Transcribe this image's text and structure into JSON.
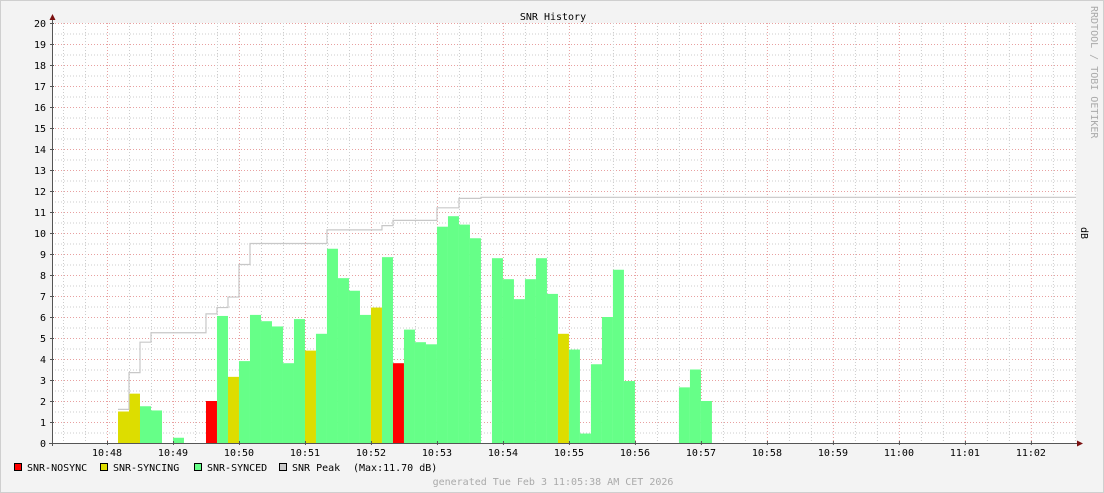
{
  "chart_data": {
    "type": "bar",
    "title": "SNR History",
    "ylabel": "dB",
    "watermark": "RRDTOOL / TOBI OETIKER",
    "footer": "generated Tue Feb  3 11:05:38 AM CET 2026",
    "ylim": [
      0,
      20
    ],
    "xlim": [
      "10:47:10",
      "11:02:41"
    ],
    "grid": true,
    "bar_interval_seconds": 10,
    "x_ticks": [
      "10:48",
      "10:49",
      "10:50",
      "10:51",
      "10:52",
      "10:53",
      "10:54",
      "10:55",
      "10:56",
      "10:57",
      "10:58",
      "10:59",
      "11:00",
      "11:01",
      "11:02"
    ],
    "y_ticks": [
      0,
      1,
      2,
      3,
      4,
      5,
      6,
      7,
      8,
      9,
      10,
      11,
      12,
      13,
      14,
      15,
      16,
      17,
      18,
      19,
      20
    ],
    "colors": {
      "nosync": "#ff0000",
      "syncing": "#dddd00",
      "synced": "#66ff88",
      "peak": "#c8c8c8"
    },
    "legend": [
      {
        "key": "nosync",
        "label": "SNR-NOSYNC"
      },
      {
        "key": "syncing",
        "label": "SNR-SYNCING"
      },
      {
        "key": "synced",
        "label": "SNR-SYNCED"
      },
      {
        "key": "peak",
        "label": "SNR Peak"
      }
    ],
    "legend_max": "(Max:11.70 dB)",
    "bars": [
      {
        "t": "10:48:10",
        "v": 1.5,
        "s": "syncing"
      },
      {
        "t": "10:48:20",
        "v": 2.35,
        "s": "syncing"
      },
      {
        "t": "10:48:30",
        "v": 1.75,
        "s": "synced"
      },
      {
        "t": "10:48:40",
        "v": 1.55,
        "s": "synced"
      },
      {
        "t": "10:49:00",
        "v": 0.25,
        "s": "synced"
      },
      {
        "t": "10:49:30",
        "v": 2.0,
        "s": "nosync"
      },
      {
        "t": "10:49:40",
        "v": 6.05,
        "s": "synced"
      },
      {
        "t": "10:49:50",
        "v": 3.15,
        "s": "syncing"
      },
      {
        "t": "10:50:00",
        "v": 3.9,
        "s": "synced"
      },
      {
        "t": "10:50:10",
        "v": 6.1,
        "s": "synced"
      },
      {
        "t": "10:50:20",
        "v": 5.8,
        "s": "synced"
      },
      {
        "t": "10:50:30",
        "v": 5.55,
        "s": "synced"
      },
      {
        "t": "10:50:40",
        "v": 3.8,
        "s": "synced"
      },
      {
        "t": "10:50:50",
        "v": 5.9,
        "s": "synced"
      },
      {
        "t": "10:51:00",
        "v": 4.4,
        "s": "syncing"
      },
      {
        "t": "10:51:10",
        "v": 5.2,
        "s": "synced"
      },
      {
        "t": "10:51:20",
        "v": 9.25,
        "s": "synced"
      },
      {
        "t": "10:51:30",
        "v": 7.85,
        "s": "synced"
      },
      {
        "t": "10:51:40",
        "v": 7.25,
        "s": "synced"
      },
      {
        "t": "10:51:50",
        "v": 6.1,
        "s": "synced"
      },
      {
        "t": "10:52:00",
        "v": 6.45,
        "s": "syncing"
      },
      {
        "t": "10:52:10",
        "v": 8.85,
        "s": "synced"
      },
      {
        "t": "10:52:20",
        "v": 3.8,
        "s": "nosync"
      },
      {
        "t": "10:52:30",
        "v": 5.4,
        "s": "synced"
      },
      {
        "t": "10:52:40",
        "v": 4.8,
        "s": "synced"
      },
      {
        "t": "10:52:50",
        "v": 4.7,
        "s": "synced"
      },
      {
        "t": "10:53:00",
        "v": 10.3,
        "s": "synced"
      },
      {
        "t": "10:53:10",
        "v": 10.8,
        "s": "synced"
      },
      {
        "t": "10:53:20",
        "v": 10.4,
        "s": "synced"
      },
      {
        "t": "10:53:30",
        "v": 9.75,
        "s": "synced"
      },
      {
        "t": "10:53:50",
        "v": 8.8,
        "s": "synced"
      },
      {
        "t": "10:54:00",
        "v": 7.8,
        "s": "synced"
      },
      {
        "t": "10:54:10",
        "v": 6.85,
        "s": "synced"
      },
      {
        "t": "10:54:20",
        "v": 7.8,
        "s": "synced"
      },
      {
        "t": "10:54:30",
        "v": 8.8,
        "s": "synced"
      },
      {
        "t": "10:54:40",
        "v": 7.1,
        "s": "synced"
      },
      {
        "t": "10:54:50",
        "v": 5.2,
        "s": "syncing"
      },
      {
        "t": "10:55:00",
        "v": 4.45,
        "s": "synced"
      },
      {
        "t": "10:55:10",
        "v": 0.45,
        "s": "synced"
      },
      {
        "t": "10:55:20",
        "v": 3.75,
        "s": "synced"
      },
      {
        "t": "10:55:30",
        "v": 6.0,
        "s": "synced"
      },
      {
        "t": "10:55:40",
        "v": 8.25,
        "s": "synced"
      },
      {
        "t": "10:55:50",
        "v": 2.95,
        "s": "synced"
      },
      {
        "t": "10:56:40",
        "v": 2.65,
        "s": "synced"
      },
      {
        "t": "10:56:50",
        "v": 3.5,
        "s": "synced"
      },
      {
        "t": "10:57:00",
        "v": 2.0,
        "s": "synced"
      }
    ],
    "peak": [
      {
        "t": "10:48:10",
        "v": 1.6
      },
      {
        "t": "10:48:20",
        "v": 3.35
      },
      {
        "t": "10:48:30",
        "v": 4.8
      },
      {
        "t": "10:48:40",
        "v": 5.25
      },
      {
        "t": "10:49:30",
        "v": 6.15
      },
      {
        "t": "10:49:40",
        "v": 6.45
      },
      {
        "t": "10:49:50",
        "v": 6.95
      },
      {
        "t": "10:50:00",
        "v": 8.5
      },
      {
        "t": "10:50:10",
        "v": 9.5
      },
      {
        "t": "10:51:20",
        "v": 10.15
      },
      {
        "t": "10:52:10",
        "v": 10.35
      },
      {
        "t": "10:52:20",
        "v": 10.6
      },
      {
        "t": "10:53:00",
        "v": 11.2
      },
      {
        "t": "10:53:20",
        "v": 11.65
      },
      {
        "t": "10:53:40",
        "v": 11.7
      },
      {
        "t": "11:02:41",
        "v": 11.7
      }
    ]
  }
}
